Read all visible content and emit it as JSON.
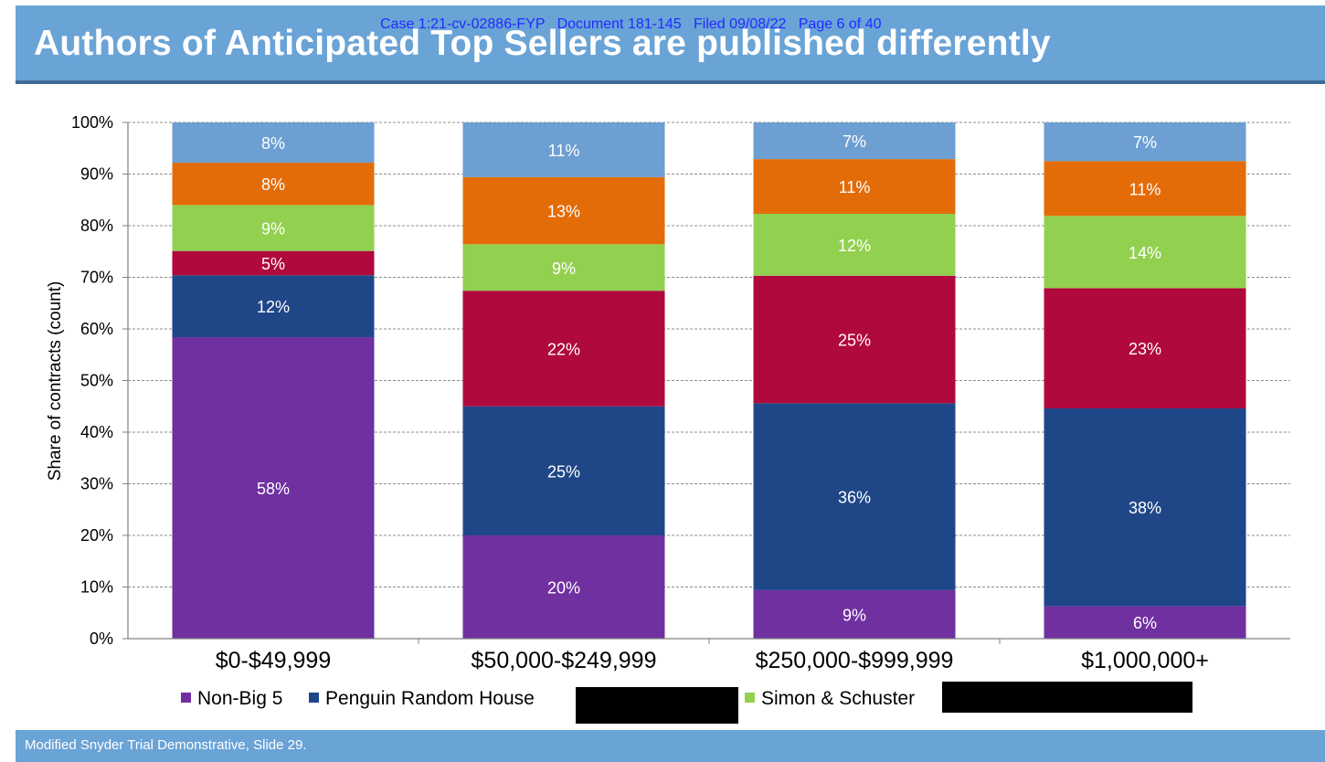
{
  "slide": {
    "title": "Authors of Anticipated Top Sellers are published differently",
    "case_header": "Case 1:21-cv-02886-FYP   Document 181-145   Filed 09/08/22   Page 6 of 40",
    "footer": "Modified Snyder Trial Demonstrative, Slide 29."
  },
  "chart_data": {
    "type": "bar",
    "stacked": true,
    "title": "Authors of Anticipated Top Sellers are published differently",
    "xlabel": "",
    "ylabel": "Share of contracts (count)",
    "ylim": [
      0,
      100
    ],
    "yticks": [
      "0%",
      "10%",
      "20%",
      "30%",
      "40%",
      "50%",
      "60%",
      "70%",
      "80%",
      "90%",
      "100%"
    ],
    "grid": true,
    "legend_position": "bottom",
    "categories": [
      "$0-$49,999",
      "$50,000-$249,999",
      "$250,000-$999,999",
      "$1,000,000+"
    ],
    "series": [
      {
        "name": "Non-Big 5",
        "color": "#7030a0",
        "values": [
          58.4,
          20.0,
          9.4,
          6.3
        ],
        "labels": [
          "58%",
          "20%",
          "9%",
          "6%"
        ]
      },
      {
        "name": "Penguin Random House",
        "color": "#1f4788",
        "values": [
          12.0,
          25.0,
          36.2,
          38.3
        ],
        "labels": [
          "12%",
          "25%",
          "36%",
          "38%"
        ]
      },
      {
        "name": "",
        "color": "#b0093d",
        "values": [
          4.7,
          22.4,
          24.7,
          23.3
        ],
        "labels": [
          "5%",
          "22%",
          "25%",
          "23%"
        ]
      },
      {
        "name": "Simon & Schuster",
        "color": "#92d050",
        "values": [
          8.9,
          9.0,
          12.0,
          14.0
        ],
        "labels": [
          "9%",
          "9%",
          "12%",
          "14%"
        ]
      },
      {
        "name": "",
        "color": "#e36c09",
        "values": [
          8.2,
          13.0,
          10.6,
          10.6
        ],
        "labels": [
          "8%",
          "13%",
          "11%",
          "11%"
        ]
      },
      {
        "name": "",
        "color": "#6d9fd2",
        "values": [
          7.8,
          10.6,
          7.1,
          7.5
        ],
        "labels": [
          "8%",
          "11%",
          "7%",
          "7%"
        ]
      }
    ],
    "legend_entries": [
      {
        "name": "Non-Big 5",
        "color": "#7030a0"
      },
      {
        "name": "Penguin Random House",
        "color": "#1f4788"
      },
      {
        "name": "",
        "color": "#000000"
      },
      {
        "name": "Simon & Schuster",
        "color": "#92d050"
      },
      {
        "name": "",
        "color": "#000000"
      }
    ]
  }
}
